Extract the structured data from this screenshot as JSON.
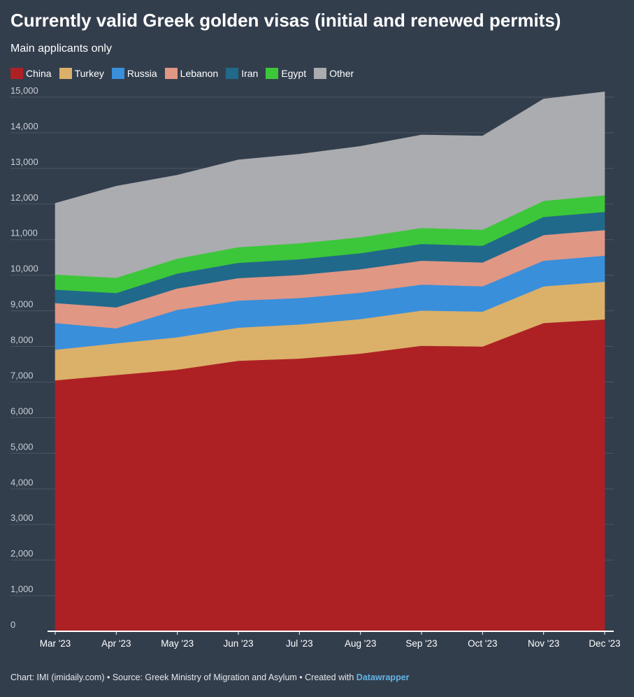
{
  "title": "Currently valid Greek golden visas (initial and renewed permits)",
  "subtitle": "Main applicants only",
  "footer": {
    "prefix": "Chart: IMI (imidaily.com) • Source: Greek Ministry of Migration and Asylum • Created with ",
    "tool": "Datawrapper"
  },
  "colors": {
    "background": "#333e4d",
    "grid": "#4b5562"
  },
  "chart_data": {
    "type": "area",
    "stacked": true,
    "title": "Currently valid Greek golden visas (initial and renewed permits)",
    "subtitle": "Main applicants only",
    "legend_position": "top-left",
    "grid": true,
    "ylim": [
      0,
      15000
    ],
    "y_ticks": [
      0,
      1000,
      2000,
      3000,
      4000,
      5000,
      6000,
      7000,
      8000,
      9000,
      10000,
      11000,
      12000,
      13000,
      14000,
      15000
    ],
    "y_tick_labels": [
      "0",
      "1,000",
      "2,000",
      "3,000",
      "4,000",
      "5,000",
      "6,000",
      "7,000",
      "8,000",
      "9,000",
      "10,000",
      "11,000",
      "12,000",
      "13,000",
      "14,000",
      "15,000"
    ],
    "categories": [
      "Mar '23",
      "Apr '23",
      "May '23",
      "Jun '23",
      "Jul '23",
      "Aug '23",
      "Sep '23",
      "Oct '23",
      "Nov '23",
      "Dec '23"
    ],
    "series": [
      {
        "name": "China",
        "color": "#ad2124",
        "values": [
          7050,
          7200,
          7350,
          7600,
          7660,
          7800,
          8020,
          8000,
          8660,
          8760
        ]
      },
      {
        "name": "Turkey",
        "color": "#dbb069",
        "values": [
          860,
          890,
          910,
          930,
          960,
          970,
          990,
          980,
          1030,
          1060
        ]
      },
      {
        "name": "Russia",
        "color": "#3a8fdb",
        "values": [
          750,
          420,
          770,
          760,
          740,
          740,
          730,
          710,
          720,
          730
        ]
      },
      {
        "name": "Lebanon",
        "color": "#e09784",
        "values": [
          560,
          590,
          600,
          630,
          650,
          660,
          670,
          670,
          720,
          720
        ]
      },
      {
        "name": "Iran",
        "color": "#21698a",
        "values": [
          380,
          400,
          420,
          430,
          440,
          450,
          470,
          470,
          510,
          510
        ]
      },
      {
        "name": "Egypt",
        "color": "#3cc73a",
        "values": [
          420,
          430,
          420,
          440,
          450,
          450,
          450,
          450,
          450,
          470
        ]
      },
      {
        "name": "Other",
        "color": "#abacaf",
        "values": [
          2000,
          2570,
          2340,
          2450,
          2500,
          2550,
          2610,
          2630,
          2860,
          2900
        ]
      }
    ]
  }
}
